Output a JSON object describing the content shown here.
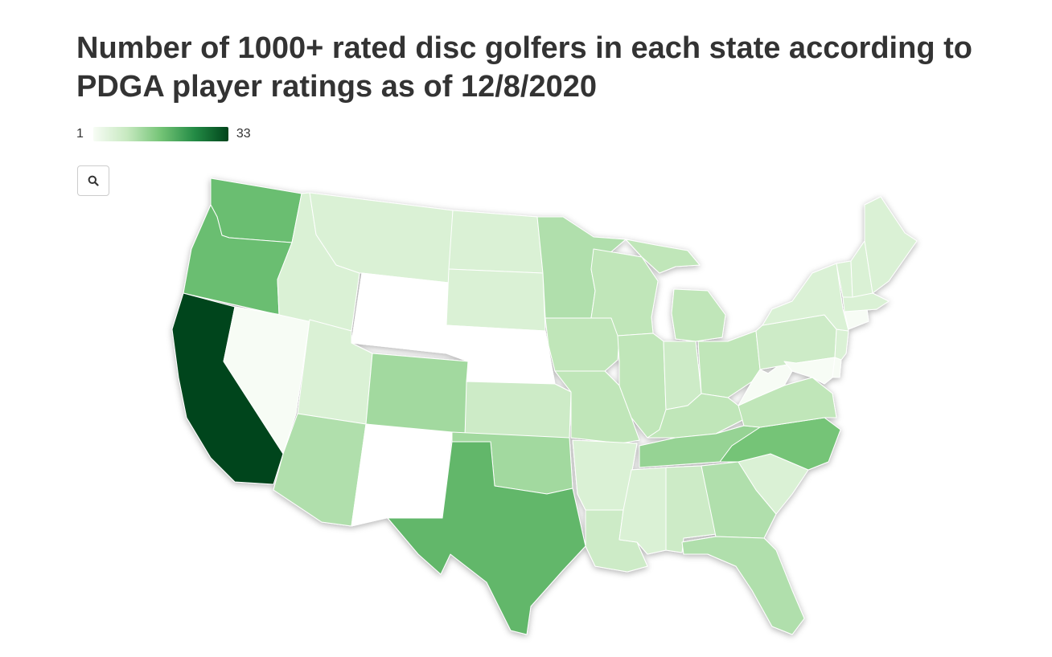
{
  "title": "Number of 1000+ rated disc golfers in each state according to PDGA player ratings as of 12/8/2020",
  "legend": {
    "min_label": "1",
    "max_label": "33",
    "min": 1,
    "max": 33
  },
  "zoom_button": {
    "icon": "search-icon"
  },
  "colors": {
    "scale": [
      "#f7fcf5",
      "#c7e9c0",
      "#74c476",
      "#238b45",
      "#00441b"
    ],
    "no_data": "#ffffff"
  },
  "states": [
    {
      "abbr": "CA",
      "value": 33
    },
    {
      "abbr": "TX",
      "value": 12
    },
    {
      "abbr": "WA",
      "value": 11
    },
    {
      "abbr": "OR",
      "value": 11
    },
    {
      "abbr": "NC",
      "value": 10
    },
    {
      "abbr": "TN",
      "value": 7
    },
    {
      "abbr": "OK",
      "value": 6
    },
    {
      "abbr": "CO",
      "value": 6
    },
    {
      "abbr": "AZ",
      "value": 5
    },
    {
      "abbr": "GA",
      "value": 5
    },
    {
      "abbr": "FL",
      "value": 5
    },
    {
      "abbr": "MN",
      "value": 5
    },
    {
      "abbr": "OH",
      "value": 4
    },
    {
      "abbr": "MI",
      "value": 4
    },
    {
      "abbr": "IA",
      "value": 4
    },
    {
      "abbr": "MO",
      "value": 4
    },
    {
      "abbr": "IL",
      "value": 4
    },
    {
      "abbr": "WI",
      "value": 4
    },
    {
      "abbr": "VA",
      "value": 4
    },
    {
      "abbr": "KY",
      "value": 4
    },
    {
      "abbr": "KS",
      "value": 3
    },
    {
      "abbr": "IN",
      "value": 3
    },
    {
      "abbr": "PA",
      "value": 3
    },
    {
      "abbr": "AL",
      "value": 3
    },
    {
      "abbr": "LA",
      "value": 3
    },
    {
      "abbr": "UT",
      "value": 2
    },
    {
      "abbr": "ID",
      "value": 2
    },
    {
      "abbr": "MT",
      "value": 2
    },
    {
      "abbr": "ND",
      "value": 2
    },
    {
      "abbr": "SD",
      "value": 2
    },
    {
      "abbr": "NY",
      "value": 2
    },
    {
      "abbr": "ME",
      "value": 2
    },
    {
      "abbr": "AR",
      "value": 2
    },
    {
      "abbr": "MS",
      "value": 2
    },
    {
      "abbr": "SC",
      "value": 2
    },
    {
      "abbr": "MA",
      "value": 2
    },
    {
      "abbr": "NJ",
      "value": 2
    },
    {
      "abbr": "NH",
      "value": 2
    },
    {
      "abbr": "VT",
      "value": 2
    },
    {
      "abbr": "NV",
      "value": 1
    },
    {
      "abbr": "WV",
      "value": 1
    },
    {
      "abbr": "MD",
      "value": 1
    },
    {
      "abbr": "CT",
      "value": 1
    },
    {
      "abbr": "DE",
      "value": 1
    },
    {
      "abbr": "WY",
      "value": null
    },
    {
      "abbr": "NE",
      "value": null
    },
    {
      "abbr": "NM",
      "value": null
    }
  ]
}
